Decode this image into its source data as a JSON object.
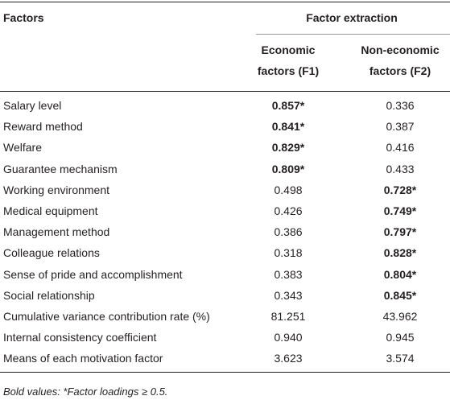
{
  "table": {
    "header": {
      "factors": "Factors",
      "group": "Factor extraction",
      "col1": [
        "Economic",
        "factors (F1)"
      ],
      "col2": [
        "Non-economic",
        "factors (F2)"
      ]
    },
    "rows": [
      [
        "Salary level",
        "0.857*",
        "0.336"
      ],
      [
        "Reward method",
        "0.841*",
        "0.387"
      ],
      [
        "Welfare",
        "0.829*",
        "0.416"
      ],
      [
        "Guarantee mechanism",
        "0.809*",
        "0.433"
      ],
      [
        "Working environment",
        "0.498",
        "0.728*"
      ],
      [
        "Medical equipment",
        "0.426",
        "0.749*"
      ],
      [
        "Management method",
        "0.386",
        "0.797*"
      ],
      [
        "Colleague relations",
        "0.318",
        "0.828*"
      ],
      [
        "Sense of pride and accomplishment",
        "0.383",
        "0.804*"
      ],
      [
        "Social relationship",
        "0.343",
        "0.845*"
      ],
      [
        "Cumulative variance contribution rate (%)",
        "81.251",
        "43.962"
      ],
      [
        "Internal consistency coefficient",
        "0.940",
        "0.945"
      ],
      [
        "Means of each motivation factor",
        "3.623",
        "3.574"
      ]
    ],
    "footnote": "Bold values: *Factor loadings ≥ 0.5."
  }
}
